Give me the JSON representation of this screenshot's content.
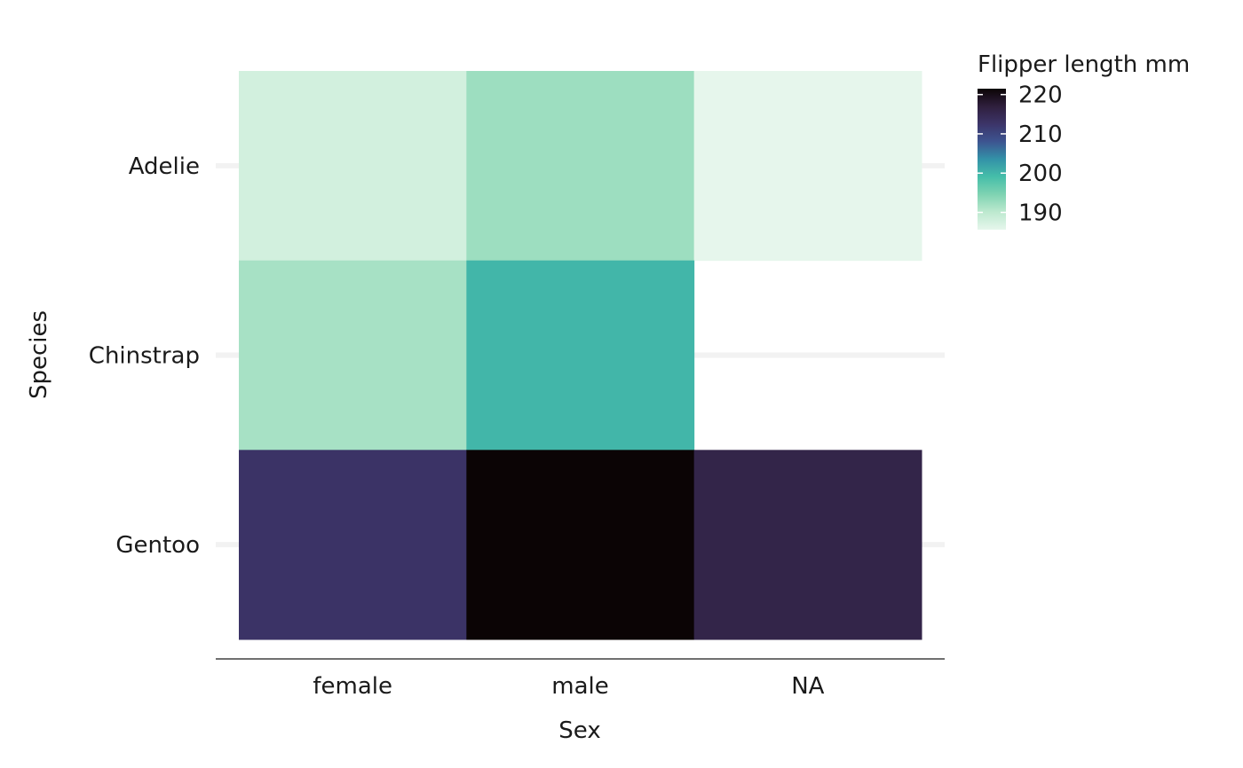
{
  "chart_data": {
    "type": "heatmap",
    "title": "",
    "xlabel": "Sex",
    "ylabel": "Species",
    "x_categories": [
      "female",
      "male",
      "NA"
    ],
    "y_categories": [
      "Adelie",
      "Chinstrap",
      "Gentoo"
    ],
    "cells": [
      {
        "x": "female",
        "y": "Adelie",
        "value": 187.8
      },
      {
        "x": "male",
        "y": "Adelie",
        "value": 192.4
      },
      {
        "x": "NA",
        "y": "Adelie",
        "value": 185.6
      },
      {
        "x": "female",
        "y": "Chinstrap",
        "value": 191.7
      },
      {
        "x": "male",
        "y": "Chinstrap",
        "value": 199.9
      },
      {
        "x": "female",
        "y": "Gentoo",
        "value": 212.7
      },
      {
        "x": "male",
        "y": "Gentoo",
        "value": 221.5
      },
      {
        "x": "NA",
        "y": "Gentoo",
        "value": 215.8
      }
    ],
    "legend": {
      "title": "Flipper length mm",
      "placement": "top-right",
      "range": [
        185.6,
        221.5
      ],
      "ticks": [
        190,
        200,
        210,
        220
      ]
    },
    "grid": "horizontal-major",
    "colors": {
      "palette": [
        "#e6f6ec",
        "#bde9cf",
        "#7fd3b2",
        "#46bea9",
        "#3392a8",
        "#3d5490",
        "#3c3468",
        "#2f1f3d",
        "#0b0405"
      ]
    }
  }
}
